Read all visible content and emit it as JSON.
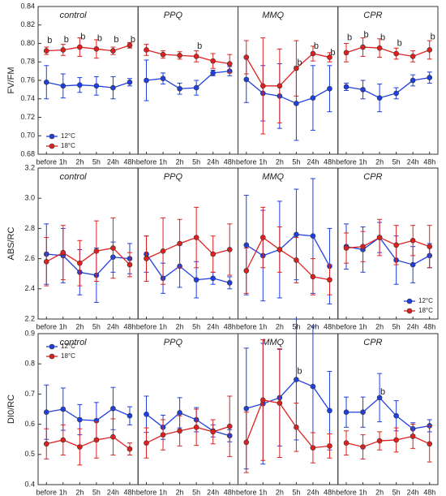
{
  "chart_data": [
    {
      "type": "line",
      "ylabel": "FV/FM",
      "ylim": [
        0.68,
        0.84
      ],
      "yticks": [
        0.68,
        {
          "value": 0.7,
          "label": "0.70"
        },
        0.72,
        0.74,
        0.76,
        0.78,
        {
          "value": 0.8,
          "label": "0.80"
        },
        0.82,
        0.84
      ],
      "categories": [
        "before",
        "1h",
        "2h",
        "5h",
        "24h",
        "48h"
      ],
      "panels": [
        {
          "title": "control",
          "legend": "lower left",
          "series": [
            {
              "name": "12°C",
              "color": "#1f3fe0",
              "values": [
                0.758,
                0.754,
                0.755,
                0.754,
                0.752,
                0.758
              ],
              "errors": [
                0.018,
                0.013,
                0.008,
                0.01,
                0.012,
                0.004
              ]
            },
            {
              "name": "18°C",
              "color": "#e0201f",
              "values": [
                0.792,
                0.793,
                0.796,
                0.794,
                0.792,
                0.798
              ],
              "errors": [
                0.004,
                0.006,
                0.01,
                0.01,
                0.004,
                0.003
              ]
            }
          ],
          "annotations": [
            {
              "label": "b",
              "category": 0,
              "y": 0.803
            },
            {
              "label": "b",
              "category": 1,
              "y": 0.804
            },
            {
              "label": "b",
              "category": 2,
              "y": 0.807
            },
            {
              "label": "b",
              "category": 3,
              "y": 0.805
            },
            {
              "label": "b",
              "category": 4,
              "y": 0.804
            },
            {
              "label": "b",
              "category": 5,
              "y": 0.804
            }
          ]
        },
        {
          "title": "PPQ",
          "series": [
            {
              "color": "#1f3fe0",
              "values": [
                0.76,
                0.762,
                0.751,
                0.752,
                0.768,
                0.77
              ],
              "errors": [
                0.022,
                0.006,
                0.006,
                0.008,
                0.003,
                0.005
              ]
            },
            {
              "color": "#e0201f",
              "values": [
                0.793,
                0.788,
                0.787,
                0.786,
                0.781,
                0.778
              ],
              "errors": [
                0.006,
                0.004,
                0.004,
                0.006,
                0.008,
                0.01
              ]
            }
          ],
          "annotations": [
            {
              "label": "b",
              "category": 3,
              "y": 0.797
            }
          ]
        },
        {
          "title": "MMQ",
          "series": [
            {
              "color": "#1f3fe0",
              "values": [
                0.761,
                0.746,
                0.743,
                0.735,
                0.741,
                0.751
              ],
              "errors": [
                0.025,
                0.03,
                0.035,
                0.04,
                0.035,
                0.025
              ]
            },
            {
              "color": "#e0201f",
              "values": [
                0.785,
                0.754,
                0.754,
                0.773,
                0.789,
                0.785
              ],
              "errors": [
                0.018,
                0.052,
                0.04,
                0.03,
                0.008,
                0.005
              ]
            }
          ],
          "annotations": [
            {
              "label": "b",
              "category": 3,
              "y": 0.779
            },
            {
              "label": "b",
              "category": 4,
              "y": 0.797
            },
            {
              "label": "b",
              "category": 5,
              "y": 0.79
            }
          ]
        },
        {
          "title": "CPR",
          "series": [
            {
              "color": "#1f3fe0",
              "values": [
                0.753,
                0.75,
                0.741,
                0.746,
                0.76,
                0.763
              ],
              "errors": [
                0.004,
                0.01,
                0.015,
                0.006,
                0.006,
                0.006
              ]
            },
            {
              "color": "#e0201f",
              "values": [
                0.79,
                0.796,
                0.795,
                0.789,
                0.786,
                0.793
              ],
              "errors": [
                0.01,
                0.01,
                0.01,
                0.006,
                0.006,
                0.01
              ]
            }
          ],
          "annotations": [
            {
              "label": "b",
              "category": 0,
              "y": 0.806
            },
            {
              "label": "b",
              "category": 1,
              "y": 0.809
            },
            {
              "label": "b",
              "category": 2,
              "y": 0.806
            },
            {
              "label": "b",
              "category": 3,
              "y": 0.8
            },
            {
              "label": "b",
              "category": 5,
              "y": 0.807
            }
          ]
        }
      ]
    },
    {
      "type": "line",
      "ylabel": "ABS/RC",
      "ylim": [
        2.2,
        3.2
      ],
      "yticks": [
        2.2,
        2.4,
        2.6,
        2.8,
        {
          "value": 3.0,
          "label": "3.0"
        },
        3.2
      ],
      "categories": [
        "before",
        "1h",
        "2h",
        "5h",
        "24h",
        "48h"
      ],
      "panels": [
        {
          "title": "control",
          "series": [
            {
              "color": "#1f3fe0",
              "values": [
                2.63,
                2.62,
                2.51,
                2.49,
                2.61,
                2.6
              ],
              "errors": [
                0.2,
                0.18,
                0.15,
                0.18,
                0.1,
                0.1
              ]
            },
            {
              "color": "#e0201f",
              "values": [
                2.58,
                2.64,
                2.57,
                2.65,
                2.67,
                2.56
              ],
              "errors": [
                0.16,
                0.18,
                0.15,
                0.2,
                0.2,
                0.08
              ]
            }
          ]
        },
        {
          "title": "PPQ",
          "series": [
            {
              "color": "#1f3fe0",
              "values": [
                2.63,
                2.47,
                2.55,
                2.46,
                2.47,
                2.44
              ],
              "errors": [
                0.12,
                0.1,
                0.14,
                0.12,
                0.04,
                0.04
              ]
            },
            {
              "color": "#e0201f",
              "values": [
                2.6,
                2.65,
                2.7,
                2.74,
                2.63,
                2.66
              ],
              "errors": [
                0.15,
                0.22,
                0.16,
                0.2,
                0.12,
                0.17
              ]
            }
          ]
        },
        {
          "title": "MMQ",
          "series": [
            {
              "color": "#1f3fe0",
              "values": [
                2.69,
                2.62,
                2.66,
                2.76,
                2.75,
                2.55
              ],
              "errors": [
                0.33,
                0.3,
                0.32,
                0.3,
                0.38,
                0.25
              ]
            },
            {
              "color": "#e0201f",
              "values": [
                2.52,
                2.74,
                2.66,
                2.59,
                2.48,
                2.46
              ],
              "errors": [
                0.15,
                0.2,
                0.15,
                0.15,
                0.12,
                0.1
              ]
            }
          ]
        },
        {
          "title": "CPR",
          "legend": "lower right",
          "series": [
            {
              "name": "12°C",
              "color": "#1f3fe0",
              "values": [
                2.68,
                2.66,
                2.74,
                2.59,
                2.56,
                2.62
              ],
              "errors": [
                0.15,
                0.15,
                0.1,
                0.16,
                0.12,
                0.08
              ]
            },
            {
              "name": "18°C",
              "color": "#e0201f",
              "values": [
                2.67,
                2.68,
                2.74,
                2.69,
                2.72,
                2.68
              ],
              "errors": [
                0.1,
                0.1,
                0.12,
                0.13,
                0.1,
                0.14
              ]
            }
          ]
        }
      ]
    },
    {
      "type": "line",
      "ylabel": "DI0/RC",
      "ylim": [
        0.4,
        0.9
      ],
      "yticks": [
        0.4,
        0.5,
        0.6,
        0.7,
        0.8,
        0.9
      ],
      "categories": [
        "before",
        "1h",
        "2h",
        "5h",
        "24h",
        "48h"
      ],
      "panels": [
        {
          "title": "control",
          "legend": "upper left",
          "series": [
            {
              "name": "12°C",
              "color": "#1f3fe0",
              "values": [
                0.64,
                0.65,
                0.615,
                0.612,
                0.652,
                0.628
              ],
              "errors": [
                0.09,
                0.07,
                0.05,
                0.06,
                0.07,
                0.03
              ]
            },
            {
              "name": "18°C",
              "color": "#e0201f",
              "values": [
                0.535,
                0.548,
                0.525,
                0.548,
                0.558,
                0.518
              ],
              "errors": [
                0.05,
                0.05,
                0.06,
                0.06,
                0.06,
                0.02
              ]
            }
          ]
        },
        {
          "title": "PPQ",
          "series": [
            {
              "color": "#1f3fe0",
              "values": [
                0.633,
                0.59,
                0.638,
                0.615,
                0.578,
                0.562
              ],
              "errors": [
                0.06,
                0.04,
                0.05,
                0.04,
                0.02,
                0.02
              ]
            },
            {
              "color": "#e0201f",
              "values": [
                0.538,
                0.565,
                0.578,
                0.59,
                0.575,
                0.593
              ],
              "errors": [
                0.05,
                0.05,
                0.05,
                0.06,
                0.04,
                0.1
              ]
            }
          ]
        },
        {
          "title": "MMQ",
          "series": [
            {
              "color": "#1f3fe0",
              "values": [
                0.652,
                0.668,
                0.688,
                0.748,
                0.725,
                0.645
              ],
              "errors": [
                0.2,
                0.2,
                0.16,
                0.2,
                0.2,
                0.13
              ]
            },
            {
              "color": "#e0201f",
              "values": [
                0.54,
                0.68,
                0.67,
                0.59,
                0.522,
                0.528
              ],
              "errors": [
                0.1,
                0.2,
                0.18,
                0.08,
                0.05,
                0.04
              ]
            }
          ],
          "annotations": [
            {
              "label": "b",
              "category": 3,
              "y": 0.775
            }
          ]
        },
        {
          "title": "CPR",
          "series": [
            {
              "color": "#1f3fe0",
              "values": [
                0.64,
                0.64,
                0.688,
                0.628,
                0.585,
                0.595
              ],
              "errors": [
                0.05,
                0.05,
                0.08,
                0.05,
                0.02,
                0.02
              ]
            },
            {
              "color": "#e0201f",
              "values": [
                0.538,
                0.525,
                0.545,
                0.548,
                0.56,
                0.535
              ],
              "errors": [
                0.04,
                0.04,
                0.03,
                0.04,
                0.04,
                0.06
              ]
            }
          ],
          "annotations": [
            {
              "label": "b",
              "category": 2,
              "y": 0.706
            }
          ]
        }
      ]
    }
  ]
}
